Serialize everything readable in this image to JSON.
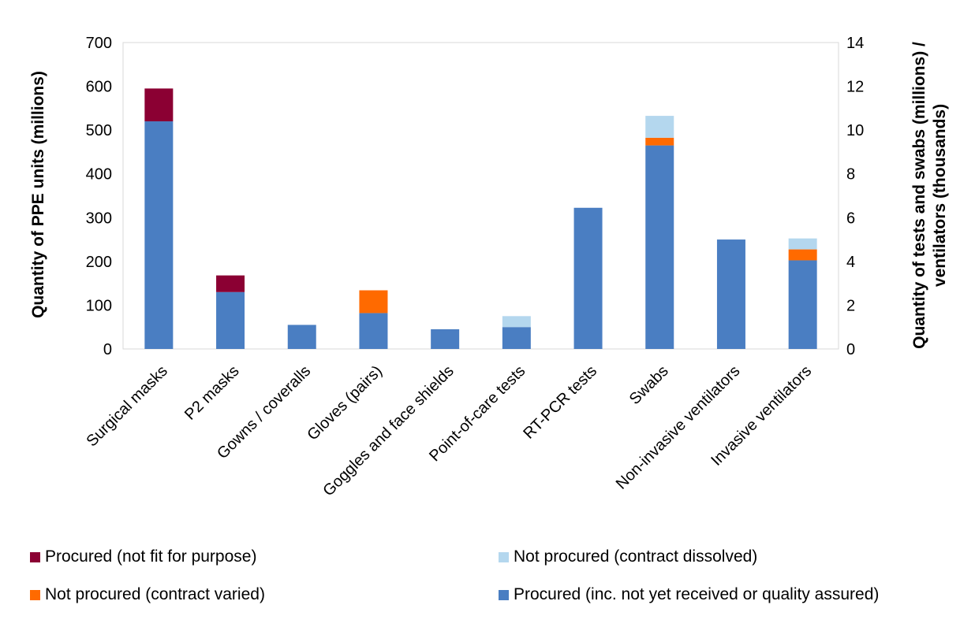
{
  "chart_data": {
    "type": "bar",
    "stacked": true,
    "categories": [
      "Surgical masks",
      "P2 masks",
      "Gowns / coveralls",
      "Gloves (pairs)",
      "Goggles and face shields",
      "Point-of-care tests",
      "RT-PCR tests",
      "Swabs",
      "Non-invasive ventilators",
      "Invasive ventilators"
    ],
    "axis": [
      "left",
      "left",
      "left",
      "left",
      "left",
      "right",
      "right",
      "right",
      "right",
      "right"
    ],
    "series": [
      {
        "name": "Procured (inc. not yet received or quality assured)",
        "color": "#4A7EC2",
        "values": [
          520,
          130,
          55,
          82,
          45,
          1.0,
          6.45,
          9.3,
          5.0,
          4.05
        ]
      },
      {
        "name": "Not procured (contract varied)",
        "color": "#FF6A00",
        "values": [
          0,
          0,
          0,
          52,
          0,
          0,
          0,
          0.35,
          0,
          0.5
        ]
      },
      {
        "name": "Procured (not fit for purpose)",
        "color": "#8B0033",
        "values": [
          75,
          38,
          0,
          0,
          0,
          0,
          0,
          0,
          0,
          0
        ]
      },
      {
        "name": "Not procured (contract dissolved)",
        "color": "#B4D7EE",
        "values": [
          0,
          0,
          0,
          0,
          0,
          0.5,
          0,
          1.0,
          0,
          0.5
        ]
      }
    ],
    "ylabel": "Quantity of PPE units (millions)",
    "ylim": [
      0,
      700
    ],
    "yticks": [
      "0",
      "100",
      "200",
      "300",
      "400",
      "500",
      "600",
      "700"
    ],
    "y2label_line1": "Quantity of tests and swabs (millions) /",
    "y2label_line2": "ventilators (thousands)",
    "y2lim": [
      0,
      14
    ],
    "y2ticks": [
      "0",
      "2",
      "4",
      "6",
      "8",
      "10",
      "12",
      "14"
    ],
    "legend_order": [
      2,
      3,
      1,
      0
    ],
    "legend_position": "bottom",
    "grid": false
  }
}
